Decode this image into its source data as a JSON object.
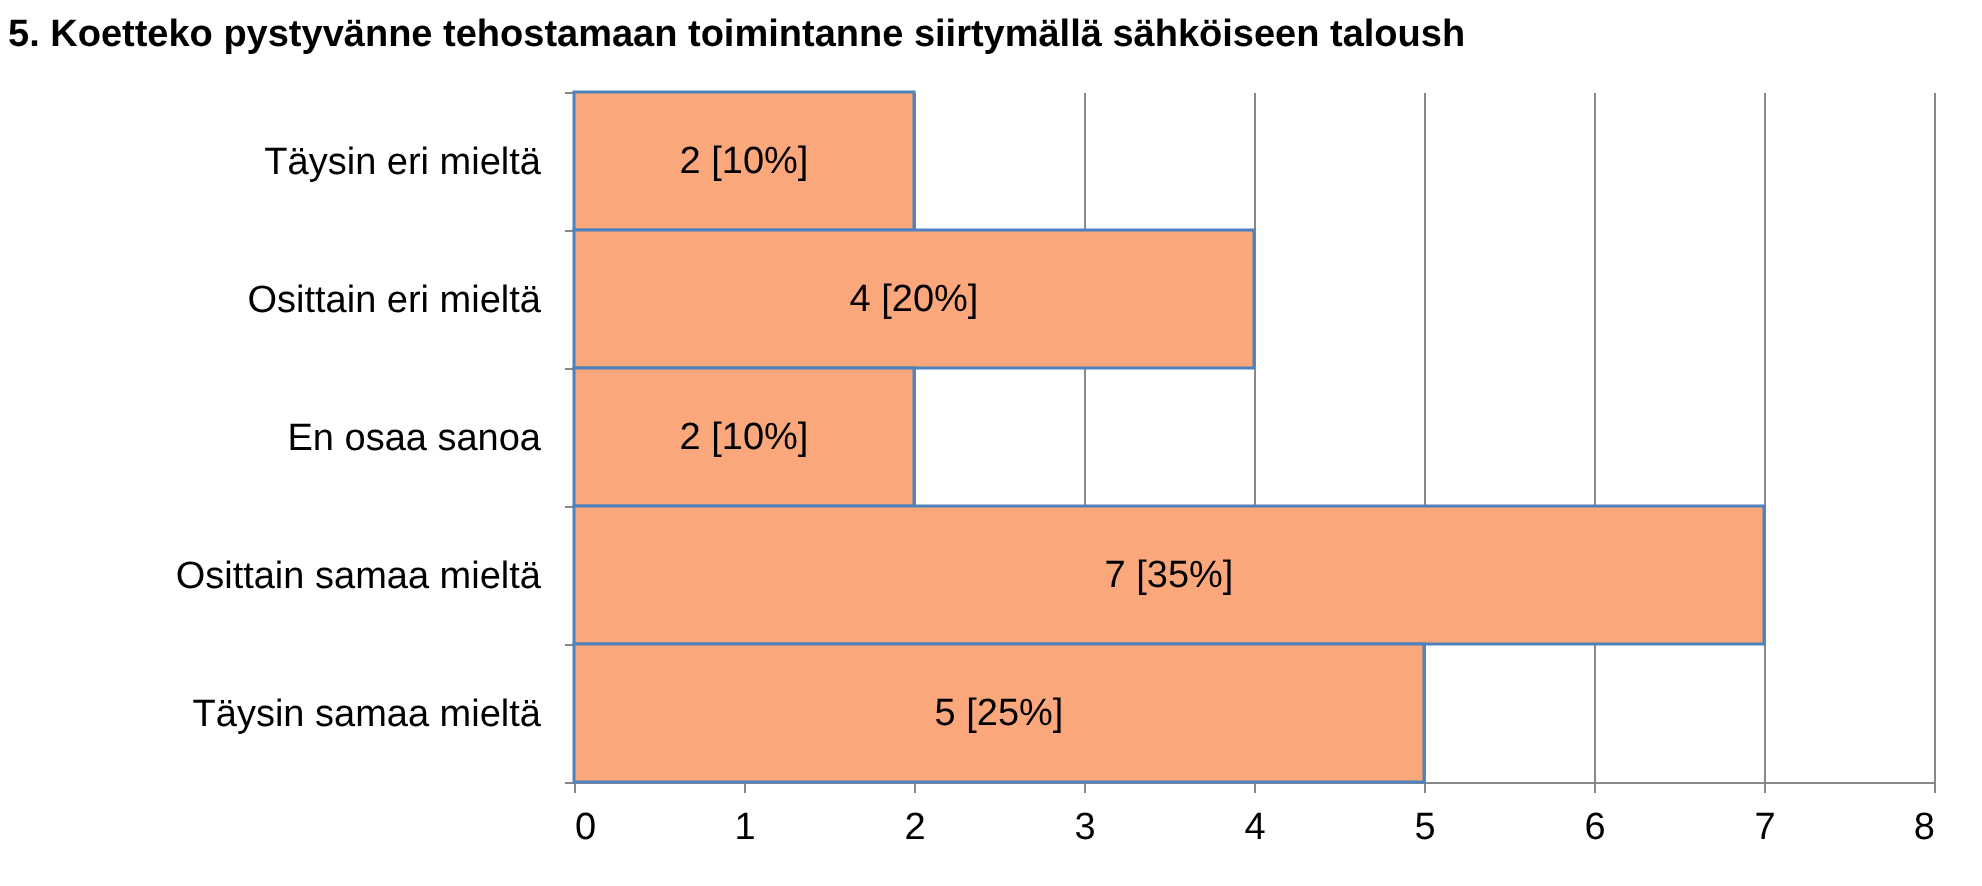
{
  "chart_data": {
    "type": "bar",
    "orientation": "horizontal",
    "title": "5. Koetteko pystyvänne tehostamaan toimintanne siirtymällä sähköiseen taloush",
    "categories": [
      "Täysin eri mieltä",
      "Osittain eri mieltä",
      "En osaa sanoa",
      "Osittain samaa mieltä",
      "Täysin samaa mieltä"
    ],
    "values": [
      2,
      4,
      2,
      7,
      5
    ],
    "value_labels": [
      "2 [10%]",
      "4 [20%]",
      "2 [10%]",
      "7 [35%]",
      "5 [25%]"
    ],
    "color": "#f9a77b",
    "xlim": [
      0,
      8
    ],
    "xticks": [
      0,
      1,
      2,
      3,
      4,
      5,
      6,
      7,
      8
    ],
    "grid": "x"
  }
}
